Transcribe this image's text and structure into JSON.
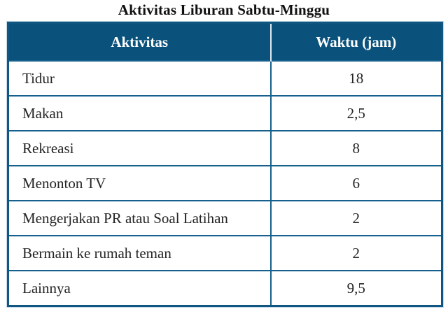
{
  "page": {
    "title": "Aktivitas Liburan Sabtu-Minggu"
  },
  "table": {
    "headers": {
      "activity": "Aktivitas",
      "time": "Waktu (jam)"
    },
    "rows": [
      {
        "activity": "Tidur",
        "time": "18"
      },
      {
        "activity": "Makan",
        "time": "2,5"
      },
      {
        "activity": "Rekreasi",
        "time": "8"
      },
      {
        "activity": "Menonton TV",
        "time": "6"
      },
      {
        "activity": "Mengerjakan PR atau Soal Latihan",
        "time": "2"
      },
      {
        "activity": "Bermain ke rumah teman",
        "time": "2"
      },
      {
        "activity": "Lainnya",
        "time": "9,5"
      }
    ]
  },
  "colors": {
    "header_bg": "#0a527c",
    "header_text": "#ffffff",
    "border": "#15608c",
    "header_divider": "#dde8f0",
    "body_text": "#242424"
  }
}
